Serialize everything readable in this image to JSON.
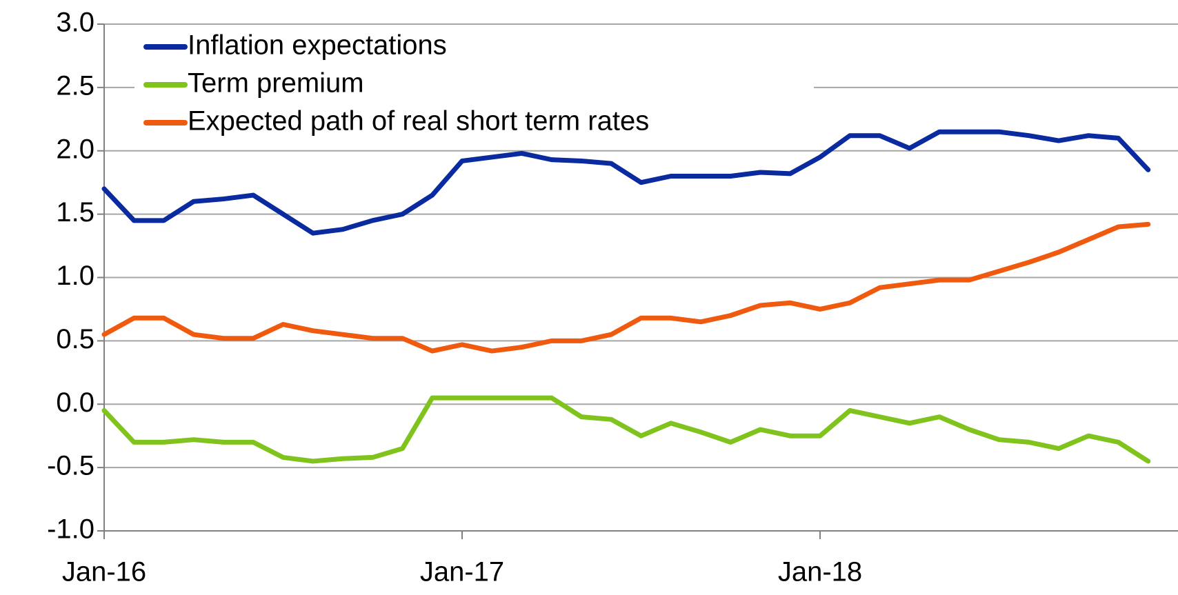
{
  "chart_data": {
    "type": "line",
    "categories": [
      "Jan-16",
      null,
      null,
      null,
      null,
      null,
      null,
      null,
      null,
      null,
      null,
      null,
      "Jan-17",
      null,
      null,
      null,
      null,
      null,
      null,
      null,
      null,
      null,
      null,
      null,
      "Jan-18",
      null,
      null,
      null,
      null,
      null,
      null,
      null,
      null,
      null,
      null,
      null
    ],
    "series": [
      {
        "name": "Inflation expectations",
        "color": "#0a2aa0",
        "values": [
          1.7,
          1.45,
          1.45,
          1.6,
          1.62,
          1.65,
          1.5,
          1.35,
          1.38,
          1.45,
          1.5,
          1.65,
          1.92,
          1.95,
          1.98,
          1.93,
          1.92,
          1.9,
          1.75,
          1.8,
          1.8,
          1.8,
          1.83,
          1.82,
          1.95,
          2.12,
          2.12,
          2.02,
          2.15,
          2.15,
          2.15,
          2.12,
          2.08,
          2.12,
          2.1,
          1.85
        ]
      },
      {
        "name": "Term premium",
        "color": "#7fc31c",
        "values": [
          -0.05,
          -0.3,
          -0.3,
          -0.28,
          -0.3,
          -0.3,
          -0.42,
          -0.45,
          -0.43,
          -0.42,
          -0.35,
          0.05,
          0.05,
          0.05,
          0.05,
          0.05,
          -0.1,
          -0.12,
          -0.25,
          -0.15,
          -0.22,
          -0.3,
          -0.2,
          -0.25,
          -0.25,
          -0.05,
          -0.1,
          -0.15,
          -0.1,
          -0.2,
          -0.28,
          -0.3,
          -0.35,
          -0.25,
          -0.3,
          -0.45
        ]
      },
      {
        "name": "Expected path of real short term rates",
        "color": "#f05a0f",
        "values": [
          0.55,
          0.68,
          0.68,
          0.55,
          0.52,
          0.52,
          0.63,
          0.58,
          0.55,
          0.52,
          0.52,
          0.42,
          0.47,
          0.42,
          0.45,
          0.5,
          0.5,
          0.55,
          0.68,
          0.68,
          0.65,
          0.7,
          0.78,
          0.8,
          0.75,
          0.8,
          0.92,
          0.95,
          0.98,
          0.98,
          1.05,
          1.12,
          1.2,
          1.3,
          1.4,
          1.42
        ]
      }
    ],
    "ylim": [
      -1,
      3
    ],
    "yticks": [
      {
        "value": -1,
        "label": "-1.0"
      },
      -0.5,
      {
        "value": 0,
        "label": "0.0"
      },
      0.5,
      {
        "value": 1,
        "label": "1.0"
      },
      1.5,
      {
        "value": 2,
        "label": "2.0"
      },
      2.5,
      {
        "value": 3,
        "label": "3.0"
      }
    ],
    "grid": true,
    "legend": "upper left"
  }
}
